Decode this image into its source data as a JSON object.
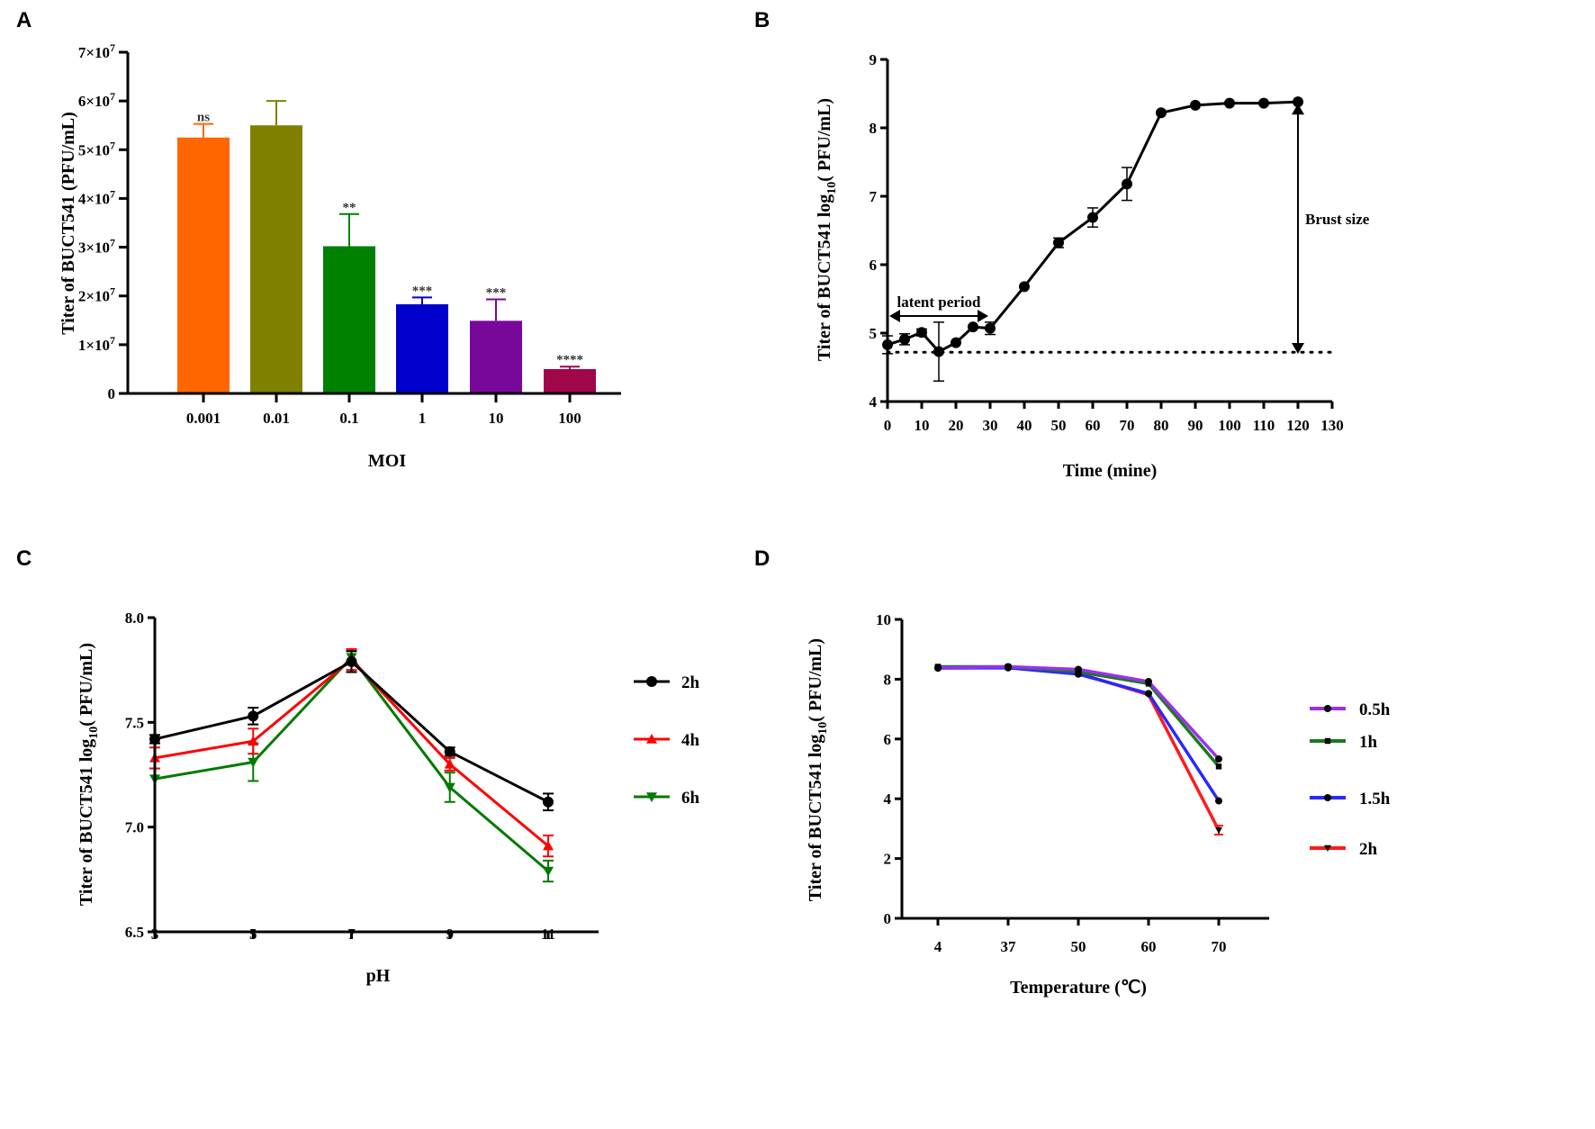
{
  "chart_data": [
    {
      "panel": "A",
      "type": "bar",
      "xlabel": "MOI",
      "ylabel": "Titer of BUCT541 (PFU/mL)",
      "categories": [
        "0.001",
        "0.01",
        "0.1",
        "1",
        "10",
        "100"
      ],
      "values": [
        52500000,
        55000000,
        30200000,
        18300000,
        14900000,
        5000000
      ],
      "error_upper": [
        55300000,
        60000000,
        36800000,
        19700000,
        19300000,
        5500000
      ],
      "annotations": [
        "ns",
        "",
        "**",
        "***",
        "***",
        "****"
      ],
      "colors": [
        "#FF6600",
        "#808000",
        "#008000",
        "#0000CC",
        "#77089A",
        "#A0064A"
      ],
      "ylim": [
        0,
        70000000
      ],
      "yticks": [
        0,
        10000000,
        20000000,
        30000000,
        40000000,
        50000000,
        60000000,
        70000000
      ],
      "ytick_labels": [
        "0",
        "1×10⁷",
        "2×10⁷",
        "3×10⁷",
        "4×10⁷",
        "5×10⁷",
        "6×10⁷",
        "7×10⁷"
      ]
    },
    {
      "panel": "B",
      "type": "line",
      "xlabel": "Time (mine)",
      "ylabel": "Titer of BUCT541 log₁₀( PFU/mL)",
      "x": [
        0,
        5,
        10,
        15,
        20,
        25,
        30,
        40,
        50,
        60,
        70,
        80,
        90,
        100,
        110,
        120
      ],
      "series": [
        {
          "color": "#000000",
          "values": [
            4.83,
            4.91,
            5.01,
            4.73,
            4.86,
            5.09,
            5.07,
            5.68,
            6.32,
            6.69,
            7.18,
            8.22,
            8.33,
            8.36,
            8.36,
            8.38
          ],
          "errors": [
            0.13,
            0.08,
            0.05,
            0.43,
            0.02,
            0.02,
            0.09,
            0.02,
            0.07,
            0.14,
            0.24,
            0.02,
            0.02,
            0.02,
            0.02,
            0.02
          ]
        }
      ],
      "reference_line": 4.72,
      "annotations": [
        {
          "text": "latent period",
          "from_x": 0,
          "to_x": 30,
          "y": 5.25
        },
        {
          "text": "Brust size",
          "x": 120,
          "from_y": 8.3,
          "to_y": 4.75
        }
      ],
      "xlim": [
        0,
        130
      ],
      "xticks": [
        0,
        10,
        20,
        30,
        40,
        50,
        60,
        70,
        80,
        90,
        100,
        110,
        120,
        130
      ],
      "ylim": [
        4,
        9
      ],
      "yticks": [
        4,
        5,
        6,
        7,
        8,
        9
      ]
    },
    {
      "panel": "C",
      "type": "line",
      "xlabel": "pH",
      "ylabel": "Titer of BUCT541 log₁₀( PFU/mL)",
      "x": [
        3,
        5,
        7,
        9,
        11
      ],
      "series": [
        {
          "name": "2h",
          "color": "#000000",
          "marker": "circle",
          "values": [
            7.42,
            7.53,
            7.79,
            7.36,
            7.12
          ],
          "errors": [
            0.02,
            0.04,
            0.05,
            0.02,
            0.04
          ]
        },
        {
          "name": "4h",
          "color": "#FF0000",
          "marker": "triangle-up",
          "values": [
            7.33,
            7.41,
            7.8,
            7.3,
            6.91
          ],
          "errors": [
            0.05,
            0.06,
            0.05,
            0.03,
            0.05
          ]
        },
        {
          "name": "6h",
          "color": "#007A00",
          "marker": "triangle-down",
          "values": [
            7.23,
            7.31,
            7.81,
            7.19,
            6.79
          ],
          "errors": [
            0.0,
            0.09,
            0.03,
            0.07,
            0.05
          ]
        }
      ],
      "xlim": [
        3,
        11
      ],
      "xticks": [
        3,
        5,
        7,
        9,
        11
      ],
      "ylim": [
        6.5,
        8.0
      ],
      "yticks": [
        6.5,
        7.0,
        7.5,
        8.0
      ],
      "ytick_labels": [
        "6.5",
        "7.0",
        "7.5",
        "8.0"
      ],
      "legend": "right"
    },
    {
      "panel": "D",
      "type": "line",
      "xlabel": "Temperature (℃)",
      "ylabel": "Titer of BUCT541 log₁₀( PFU/mL)",
      "categories": [
        "4",
        "37",
        "50",
        "60",
        "70"
      ],
      "series": [
        {
          "name": "0.5h",
          "color": "#9B30F0",
          "marker": "circle",
          "values": [
            8.38,
            8.42,
            8.33,
            7.92,
            5.33
          ]
        },
        {
          "name": "1h",
          "color": "#1A7A1A",
          "marker": "square",
          "values": [
            8.42,
            8.42,
            8.25,
            7.85,
            5.08
          ]
        },
        {
          "name": "1.5h",
          "color": "#2828FF",
          "marker": "circle",
          "values": [
            8.37,
            8.38,
            8.17,
            7.52,
            3.93
          ]
        },
        {
          "name": "2h",
          "color": "#FF1A1A",
          "marker": "triangle-down",
          "values": [
            8.38,
            8.39,
            8.2,
            7.48,
            2.95
          ],
          "errors": [
            0.02,
            0.02,
            0.02,
            0.02,
            0.15
          ]
        }
      ],
      "ylim": [
        0,
        10
      ],
      "yticks": [
        0,
        2,
        4,
        6,
        8,
        10
      ],
      "legend": "right"
    }
  ]
}
